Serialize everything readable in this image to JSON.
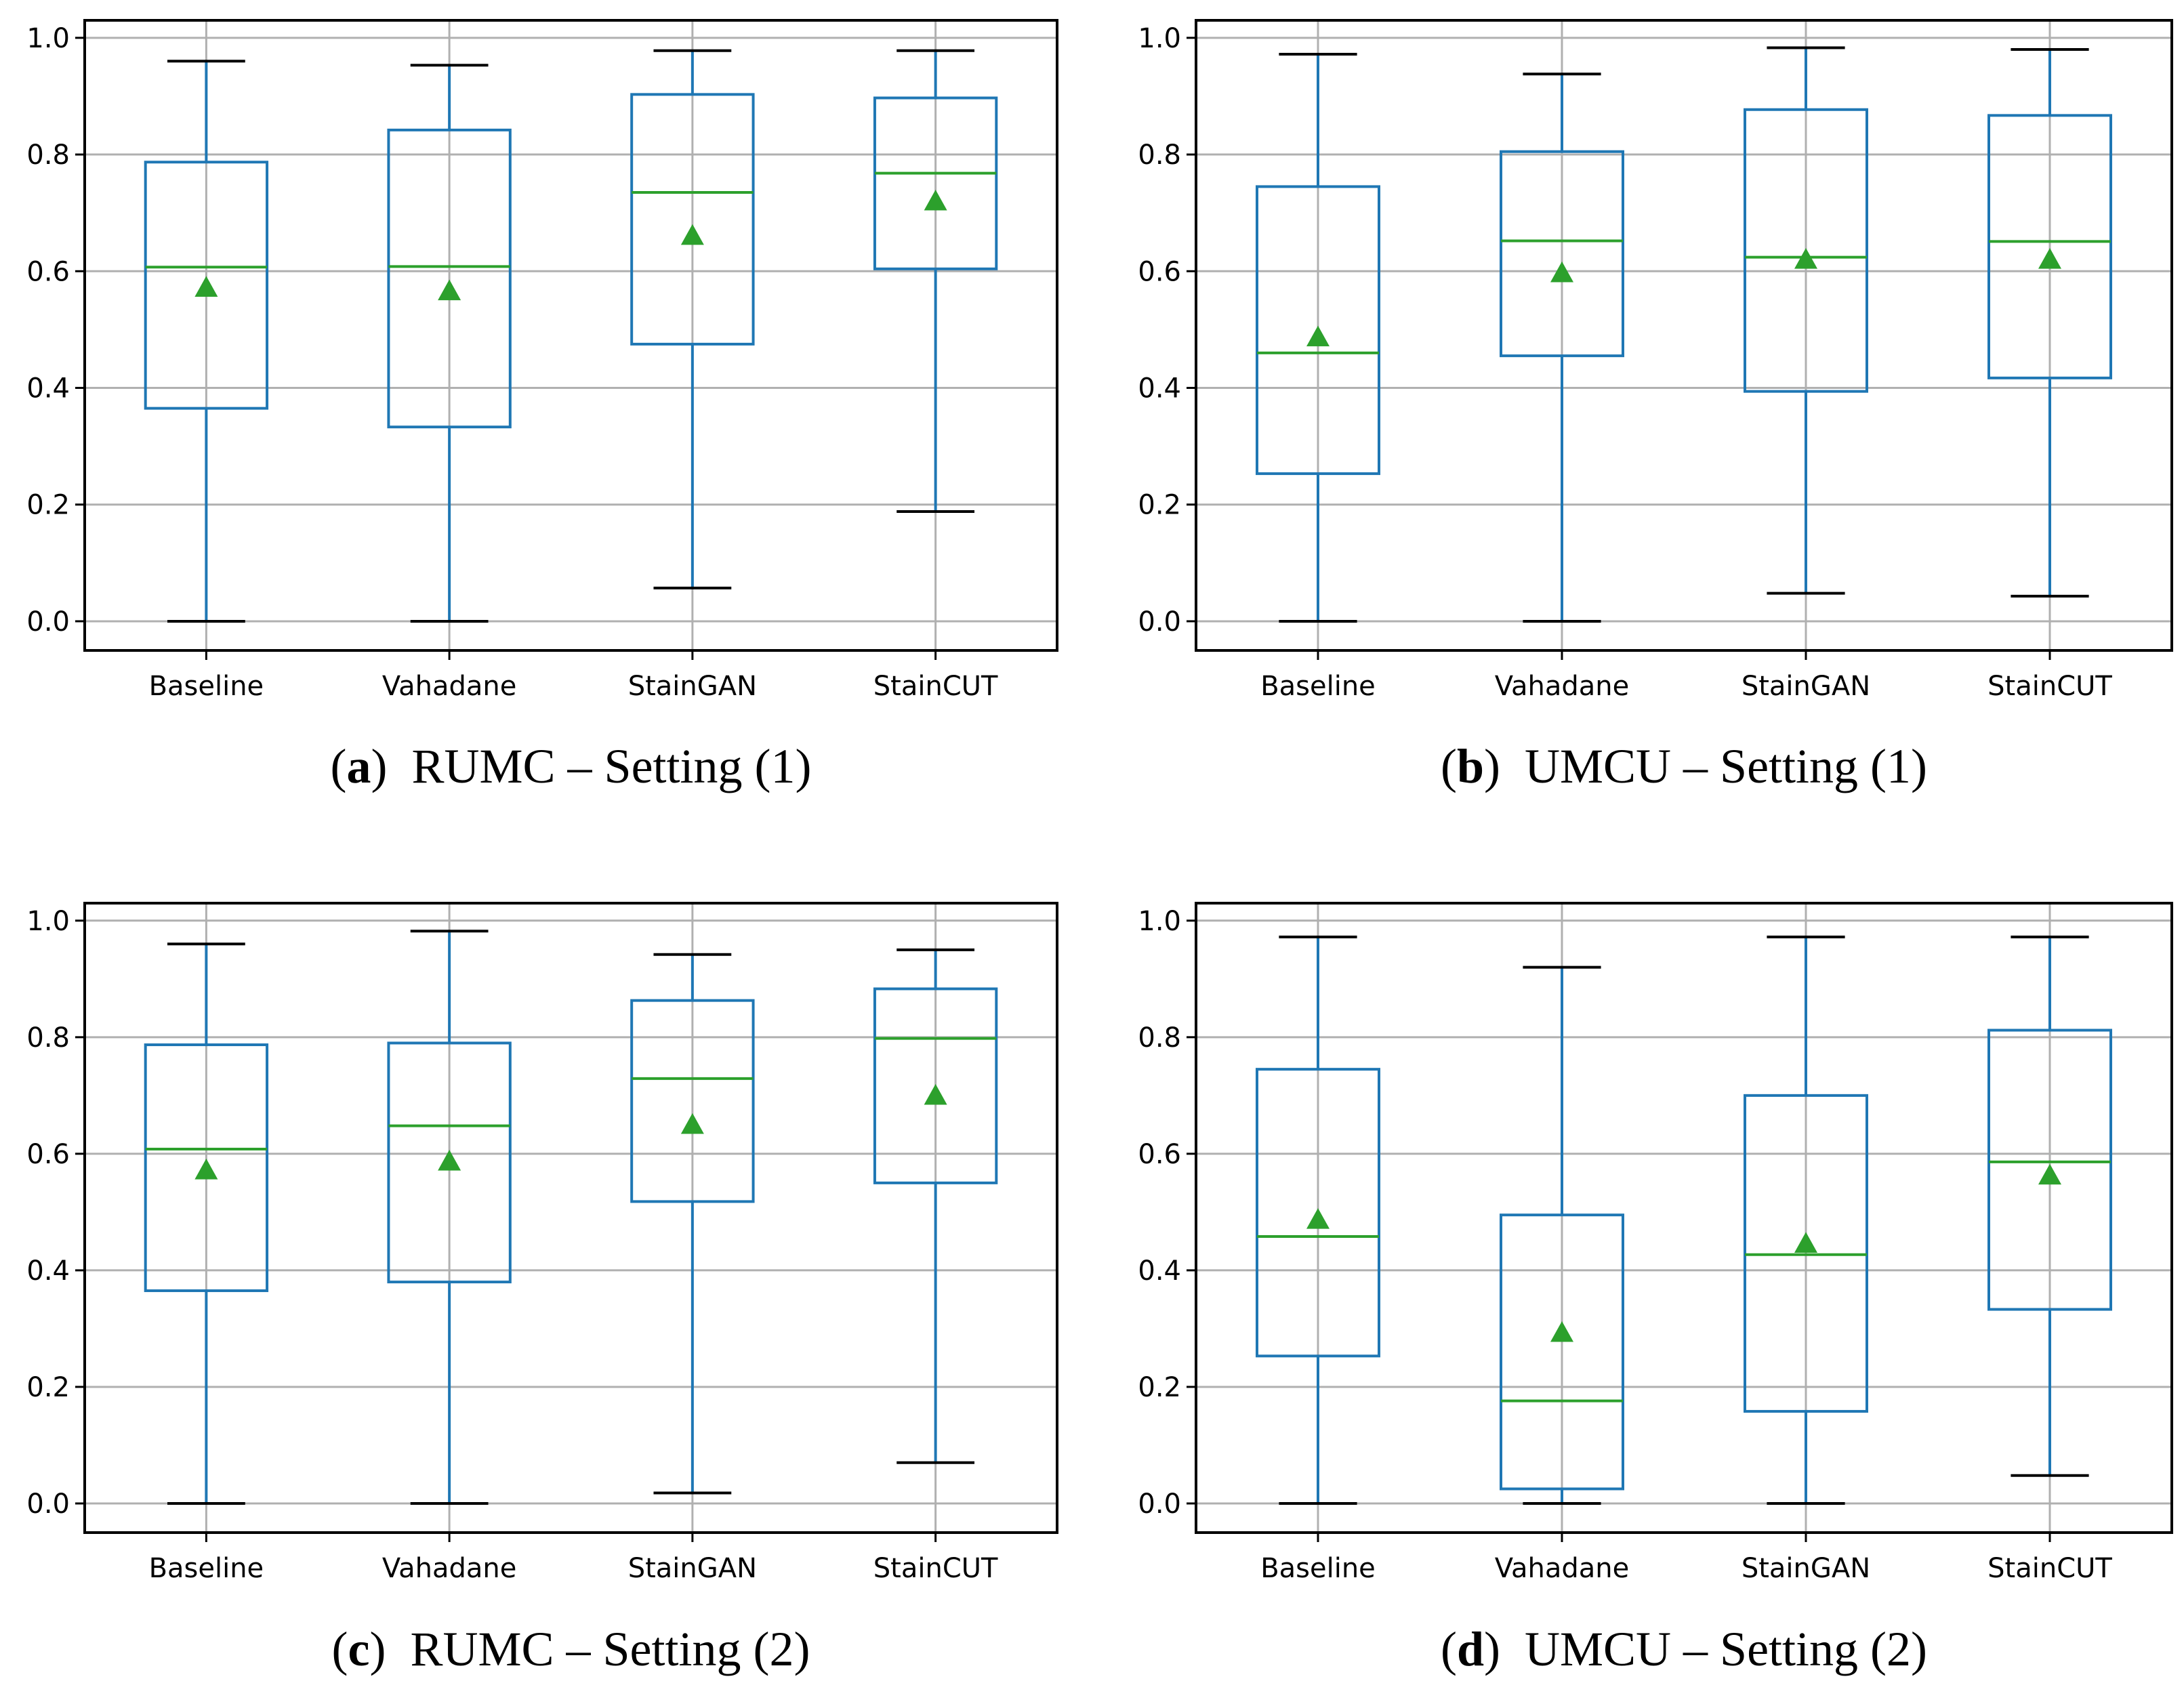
{
  "colors": {
    "box": "#1f77b4",
    "median": "#2ca02c",
    "mean_marker": "#2ca02c",
    "whisker_cap": "#000000",
    "grid": "#b0b0b0",
    "frame": "#000000"
  },
  "chart_data": [
    {
      "type": "boxplot",
      "caption": {
        "letter": "a",
        "text": "RUMC – Setting (1)"
      },
      "categories": [
        "Baseline",
        "Vahadane",
        "StainGAN",
        "StainCUT"
      ],
      "ylim": [
        -0.05,
        1.03
      ],
      "yticks": [
        "0.0",
        "0.2",
        "0.4",
        "0.6",
        "0.8",
        "1.0"
      ],
      "grid": true,
      "boxes": [
        {
          "whisker_low": 0.0,
          "q1": 0.365,
          "median": 0.607,
          "q3": 0.787,
          "whisker_high": 0.96,
          "mean": 0.572
        },
        {
          "whisker_low": 0.0,
          "q1": 0.333,
          "median": 0.608,
          "q3": 0.842,
          "whisker_high": 0.953,
          "mean": 0.566
        },
        {
          "whisker_low": 0.057,
          "q1": 0.475,
          "median": 0.735,
          "q3": 0.903,
          "whisker_high": 0.978,
          "mean": 0.661
        },
        {
          "whisker_low": 0.188,
          "q1": 0.604,
          "median": 0.768,
          "q3": 0.897,
          "whisker_high": 0.978,
          "mean": 0.72
        }
      ]
    },
    {
      "type": "boxplot",
      "caption": {
        "letter": "b",
        "text": "UMCU – Setting (1)"
      },
      "categories": [
        "Baseline",
        "Vahadane",
        "StainGAN",
        "StainCUT"
      ],
      "ylim": [
        -0.05,
        1.03
      ],
      "yticks": [
        "0.0",
        "0.2",
        "0.4",
        "0.6",
        "0.8",
        "1.0"
      ],
      "grid": true,
      "boxes": [
        {
          "whisker_low": 0.0,
          "q1": 0.253,
          "median": 0.46,
          "q3": 0.745,
          "whisker_high": 0.972,
          "mean": 0.487
        },
        {
          "whisker_low": 0.0,
          "q1": 0.455,
          "median": 0.652,
          "q3": 0.805,
          "whisker_high": 0.938,
          "mean": 0.597
        },
        {
          "whisker_low": 0.048,
          "q1": 0.394,
          "median": 0.624,
          "q3": 0.877,
          "whisker_high": 0.983,
          "mean": 0.62
        },
        {
          "whisker_low": 0.043,
          "q1": 0.417,
          "median": 0.651,
          "q3": 0.867,
          "whisker_high": 0.98,
          "mean": 0.62
        }
      ]
    },
    {
      "type": "boxplot",
      "caption": {
        "letter": "c",
        "text": "RUMC – Setting (2)"
      },
      "categories": [
        "Baseline",
        "Vahadane",
        "StainGAN",
        "StainCUT"
      ],
      "ylim": [
        -0.05,
        1.03
      ],
      "yticks": [
        "0.0",
        "0.2",
        "0.4",
        "0.6",
        "0.8",
        "1.0"
      ],
      "grid": true,
      "boxes": [
        {
          "whisker_low": 0.0,
          "q1": 0.365,
          "median": 0.608,
          "q3": 0.787,
          "whisker_high": 0.96,
          "mean": 0.572
        },
        {
          "whisker_low": 0.0,
          "q1": 0.38,
          "median": 0.648,
          "q3": 0.79,
          "whisker_high": 0.982,
          "mean": 0.587
        },
        {
          "whisker_low": 0.018,
          "q1": 0.518,
          "median": 0.729,
          "q3": 0.863,
          "whisker_high": 0.942,
          "mean": 0.65
        },
        {
          "whisker_low": 0.07,
          "q1": 0.55,
          "median": 0.798,
          "q3": 0.883,
          "whisker_high": 0.95,
          "mean": 0.7
        }
      ]
    },
    {
      "type": "boxplot",
      "caption": {
        "letter": "d",
        "text": "UMCU – Setting (2)"
      },
      "categories": [
        "Baseline",
        "Vahadane",
        "StainGAN",
        "StainCUT"
      ],
      "ylim": [
        -0.05,
        1.03
      ],
      "yticks": [
        "0.0",
        "0.2",
        "0.4",
        "0.6",
        "0.8",
        "1.0"
      ],
      "grid": true,
      "boxes": [
        {
          "whisker_low": 0.0,
          "q1": 0.253,
          "median": 0.458,
          "q3": 0.745,
          "whisker_high": 0.972,
          "mean": 0.487
        },
        {
          "whisker_low": 0.0,
          "q1": 0.025,
          "median": 0.176,
          "q3": 0.495,
          "whisker_high": 0.92,
          "mean": 0.293
        },
        {
          "whisker_low": 0.0,
          "q1": 0.158,
          "median": 0.427,
          "q3": 0.7,
          "whisker_high": 0.972,
          "mean": 0.446
        },
        {
          "whisker_low": 0.048,
          "q1": 0.333,
          "median": 0.586,
          "q3": 0.812,
          "whisker_high": 0.972,
          "mean": 0.563
        }
      ]
    }
  ]
}
